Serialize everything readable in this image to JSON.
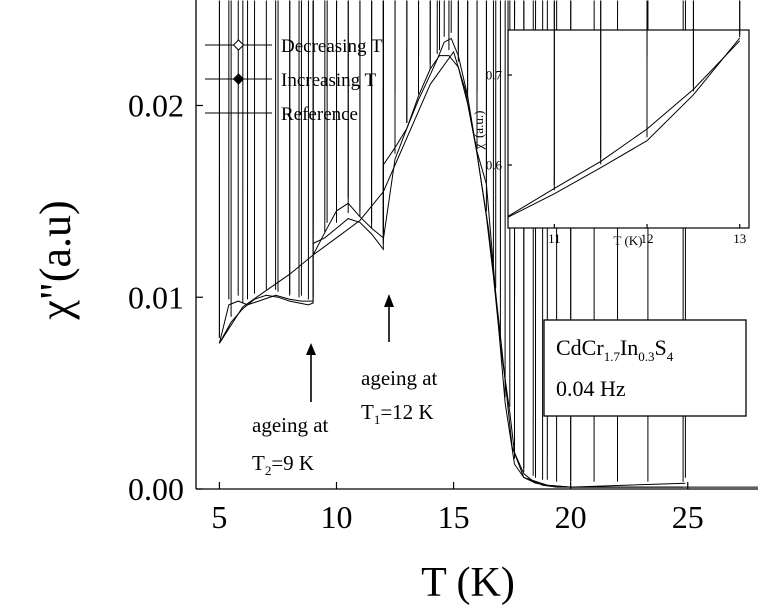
{
  "chart_data": [
    {
      "type": "line",
      "title": "",
      "xlabel": "T (K)",
      "ylabel": "χ\"(a.u)",
      "xlim": [
        4,
        28
      ],
      "ylim": [
        0,
        0.0255
      ],
      "xticks": [
        5,
        10,
        15,
        20,
        25
      ],
      "yticks": [
        0.0,
        0.01,
        0.02
      ],
      "ytick_labels": [
        "0.00",
        "0.01",
        "0.02"
      ],
      "legend": {
        "position": "top-left"
      },
      "series": [
        {
          "name": "Decreasing T",
          "marker": "open-diamond",
          "x": [
            5.0,
            5.5,
            6.0,
            6.5,
            7.0,
            7.5,
            8.0,
            8.4,
            8.8,
            9.0,
            9.0,
            9.5,
            10.0,
            10.5,
            11.0,
            11.5,
            12.0,
            12.0,
            12.5,
            13.0,
            13.5,
            14.0,
            14.3,
            14.6,
            14.9,
            15.2,
            15.6,
            16.0,
            16.4,
            16.7,
            17.0,
            17.4,
            17.6,
            18.0,
            18.4,
            18.8,
            19.4,
            20.0,
            21.0,
            22.0,
            23.3,
            24.8
          ],
          "y": [
            0.0076,
            0.0087,
            0.0094,
            0.0099,
            0.0101,
            0.01,
            0.0098,
            0.0097,
            0.0096,
            0.0097,
            0.0128,
            0.0131,
            0.0136,
            0.0141,
            0.0139,
            0.0133,
            0.0125,
            0.0169,
            0.0178,
            0.0188,
            0.0203,
            0.0216,
            0.0224,
            0.0233,
            0.0235,
            0.0226,
            0.0205,
            0.0175,
            0.0142,
            0.0111,
            0.0075,
            0.004,
            0.0019,
            0.0008,
            0.0004,
            0.0002,
            0.0001,
            0.0001,
            0.0001,
            0.0001,
            0.0001,
            0.0001
          ]
        },
        {
          "name": "Increasing T",
          "marker": "filled-diamond",
          "x": [
            5.0,
            5.4,
            5.8,
            6.2,
            7.4,
            8.0,
            8.5,
            9.0,
            9.0,
            9.6,
            10.0,
            10.5,
            11.0,
            11.5,
            12.0,
            12.0,
            12.5,
            13.0,
            13.5,
            14.0,
            14.4,
            14.8,
            15.2,
            15.6,
            16.0,
            16.4,
            16.8,
            17.2,
            17.6,
            18.0,
            18.5,
            19.0,
            20.0,
            24.9
          ],
          "y": [
            0.0076,
            0.0096,
            0.0098,
            0.0096,
            0.0101,
            0.0099,
            0.0098,
            0.0098,
            0.0122,
            0.0136,
            0.0145,
            0.0149,
            0.0142,
            0.0136,
            0.0131,
            0.013,
            0.0172,
            0.0188,
            0.0205,
            0.0219,
            0.0226,
            0.0226,
            0.022,
            0.0201,
            0.0176,
            0.0159,
            0.0102,
            0.0045,
            0.0013,
            0.0006,
            0.0003,
            0.0002,
            0.0001,
            0.0003
          ]
        },
        {
          "name": "Reference",
          "marker": "none",
          "x": [
            5.0,
            6.0,
            8.0,
            9.0,
            10.0,
            11.0,
            12.0,
            13.0,
            14.0,
            15.0,
            15.5,
            16.0,
            16.5,
            17.0,
            17.5,
            18.0,
            19.0,
            20.0,
            25.0,
            28.0
          ],
          "y": [
            0.0076,
            0.0095,
            0.0112,
            0.0122,
            0.0131,
            0.014,
            0.0155,
            0.0183,
            0.0211,
            0.0228,
            0.0208,
            0.0175,
            0.0135,
            0.008,
            0.0022,
            0.0006,
            0.0002,
            0.0001,
            0.0001,
            0.0001
          ]
        }
      ],
      "annotations": {
        "ageing_t2_line1": "ageing at",
        "ageing_t2_line2": "T",
        "ageing_t2_sub": "2",
        "ageing_t2_val": "=9 K",
        "ageing_t1_line1": "ageing at",
        "ageing_t1_line2": "T",
        "ageing_t1_sub": "1",
        "ageing_t1_val": "=12 K"
      },
      "sample_box": {
        "cd": "CdCr",
        "sub1": "1.7",
        "in": "In",
        "sub2": "0.3",
        "s": "S",
        "sub3": "4",
        "freq": "0.04 Hz"
      }
    },
    {
      "type": "line",
      "title": "",
      "xlabel": "T (K)",
      "ylabel": "χ' (a.u.)",
      "xlim": [
        10.5,
        13.1
      ],
      "ylim": [
        0.53,
        0.75
      ],
      "xticks": [
        11,
        12,
        13
      ],
      "yticks": [
        0.6,
        0.7
      ],
      "ytick_labels": [
        "0.6",
        "0.7"
      ],
      "series": [
        {
          "name": "Decreasing T",
          "marker": "open-diamond",
          "x": [
            10.5,
            11.0,
            11.5,
            12.0,
            12.5,
            13.0
          ],
          "y": [
            0.543,
            0.574,
            0.604,
            0.64,
            0.684,
            0.738
          ]
        },
        {
          "name": "Increasing T",
          "marker": "filled-diamond",
          "x": [
            10.5,
            11.0,
            11.5,
            12.0,
            12.5,
            13.0
          ],
          "y": [
            0.542,
            0.568,
            0.597,
            0.627,
            0.678,
            0.741
          ]
        }
      ]
    }
  ]
}
